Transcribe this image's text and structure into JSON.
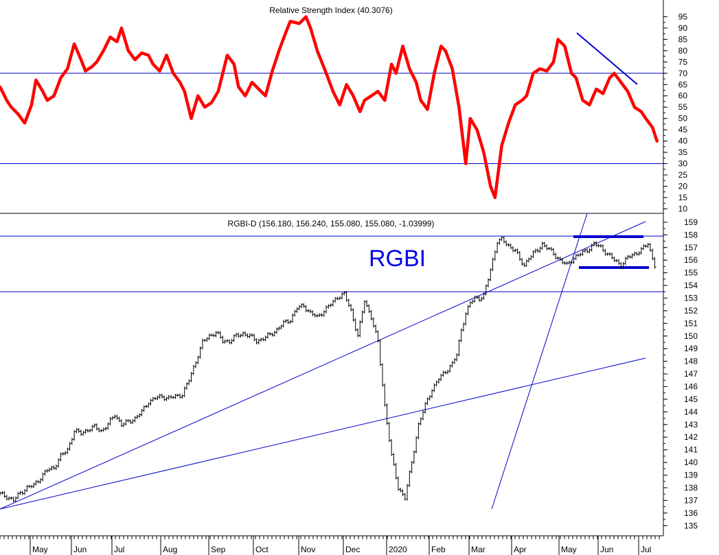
{
  "colors": {
    "background": "#ffffff",
    "rsi_line": "#ff0000",
    "guide_lines": "#0000cc",
    "price_bars": "#000000",
    "annotation_text": "#0000ee"
  },
  "annotation": "RGBI",
  "chart_data": [
    {
      "type": "line",
      "title": "Relative Strength Index (40.3076)",
      "ylim": [
        8,
        100
      ],
      "yticks": [
        10,
        15,
        20,
        25,
        30,
        35,
        40,
        45,
        50,
        55,
        60,
        65,
        70,
        75,
        80,
        85,
        90,
        95
      ],
      "reference_levels": [
        70,
        30
      ],
      "x": [
        0,
        3,
        5,
        8,
        11,
        14,
        16,
        19,
        21,
        24,
        27,
        30,
        33,
        36,
        38,
        41,
        43,
        46,
        49,
        52,
        54,
        57,
        60,
        63,
        66,
        68,
        71,
        74,
        77,
        80,
        82,
        85,
        88,
        91,
        94,
        97,
        99,
        101,
        104,
        106,
        109,
        112,
        115,
        118,
        121,
        124,
        127,
        129,
        133,
        136,
        138,
        141,
        143,
        145,
        148,
        151,
        154,
        157,
        160,
        162,
        165,
        168,
        171,
        174,
        176,
        179,
        182,
        185,
        187,
        190,
        193,
        196,
        198,
        201,
        204,
        207,
        209,
        212,
        215,
        218,
        220,
        223,
        226,
        229,
        232,
        234,
        237,
        240,
        243,
        246,
        248,
        251,
        254,
        256,
        259,
        262,
        265,
        268,
        271,
        273,
        276,
        279,
        282,
        285,
        287,
        290,
        292
      ],
      "values": [
        64,
        58,
        55,
        52,
        48,
        56,
        67,
        62,
        58,
        60,
        68,
        72,
        83,
        76,
        71,
        73,
        75,
        80,
        86,
        84,
        90,
        80,
        76,
        79,
        78,
        74,
        71,
        78,
        70,
        66,
        62,
        50,
        60,
        55,
        57,
        62,
        70,
        78,
        74,
        64,
        60,
        66,
        63,
        60,
        71,
        80,
        88,
        93,
        92,
        95,
        90,
        80,
        75,
        70,
        62,
        56,
        65,
        60,
        53,
        58,
        60,
        62,
        58,
        74,
        70,
        82,
        72,
        66,
        58,
        54,
        70,
        82,
        80,
        72,
        55,
        30,
        50,
        45,
        35,
        20,
        15,
        38,
        48,
        56,
        58,
        60,
        70,
        72,
        71,
        75,
        85,
        82,
        70,
        68,
        58,
        56,
        63,
        61,
        68,
        70,
        66,
        62,
        55,
        53,
        50,
        46,
        40
      ]
    },
    {
      "type": "bar",
      "title": "RGBI-D (156.180, 156.240, 155.080, 155.080, -1.03999)",
      "ylim": [
        134.2,
        159.7
      ],
      "yticks": [
        135,
        136,
        137,
        138,
        139,
        140,
        141,
        142,
        143,
        144,
        145,
        146,
        147,
        148,
        149,
        150,
        151,
        152,
        153,
        154,
        155,
        156,
        157,
        158,
        159
      ],
      "xlabels": [
        "May",
        "Jun",
        "Jul",
        "Aug",
        "Sep",
        "Oct",
        "Nov",
        "Dec",
        "2020",
        "Feb",
        "Mar",
        "Apr",
        "May",
        "Jun",
        "Jul"
      ],
      "horizontal_levels": [
        157.9,
        153.5
      ],
      "x": [
        0,
        3,
        6,
        9,
        12,
        15,
        18,
        21,
        24,
        27,
        30,
        33,
        36,
        39,
        42,
        45,
        48,
        51,
        54,
        57,
        60,
        63,
        66,
        69,
        72,
        75,
        78,
        81,
        84,
        87,
        90,
        93,
        96,
        99,
        102,
        105,
        108,
        111,
        114,
        117,
        120,
        123,
        126,
        129,
        132,
        135,
        138,
        141,
        144,
        147,
        150,
        153,
        156,
        159,
        162,
        165,
        168,
        171,
        174,
        177,
        180,
        183,
        186,
        189,
        192,
        195,
        198,
        201,
        203,
        205,
        207,
        209,
        211,
        213,
        215,
        217,
        219,
        221,
        223,
        225,
        227,
        229,
        231,
        233,
        235,
        237,
        239,
        241,
        243,
        246,
        249,
        252,
        255,
        258,
        261,
        264,
        267,
        270,
        273,
        276,
        279,
        282,
        285,
        288,
        291,
        292
      ],
      "values": [
        137.5,
        137.3,
        137.0,
        137.6,
        138.0,
        138.2,
        138.8,
        139.4,
        139.6,
        140.5,
        141.0,
        142.5,
        142.3,
        142.6,
        142.8,
        142.5,
        143.0,
        143.8,
        143.0,
        143.2,
        143.5,
        144.0,
        144.8,
        145.1,
        145.2,
        145.1,
        145.2,
        145.4,
        146.5,
        148.0,
        149.5,
        150.0,
        150.3,
        149.6,
        149.6,
        150.0,
        150.2,
        150.0,
        149.6,
        149.8,
        150.1,
        150.5,
        151.0,
        151.3,
        152.2,
        152.4,
        151.8,
        151.5,
        152.0,
        152.5,
        153.1,
        153.3,
        152.0,
        150.0,
        152.8,
        151.5,
        149.5,
        144.5,
        140.5,
        138.0,
        137.2,
        140.0,
        143.0,
        144.5,
        145.8,
        146.6,
        147.2,
        147.8,
        148.5,
        150.5,
        151.8,
        152.6,
        153.0,
        153.0,
        153.2,
        154.5,
        156.0,
        157.5,
        157.6,
        157.3,
        157.0,
        156.8,
        156.0,
        155.6,
        156.2,
        156.5,
        156.8,
        157.3,
        157.0,
        156.5,
        156.0,
        155.6,
        156.2,
        156.5,
        156.8,
        157.3,
        157.0,
        156.5,
        156.0,
        155.6,
        156.2,
        156.5,
        156.8,
        157.3,
        155.6,
        155.1
      ]
    }
  ]
}
